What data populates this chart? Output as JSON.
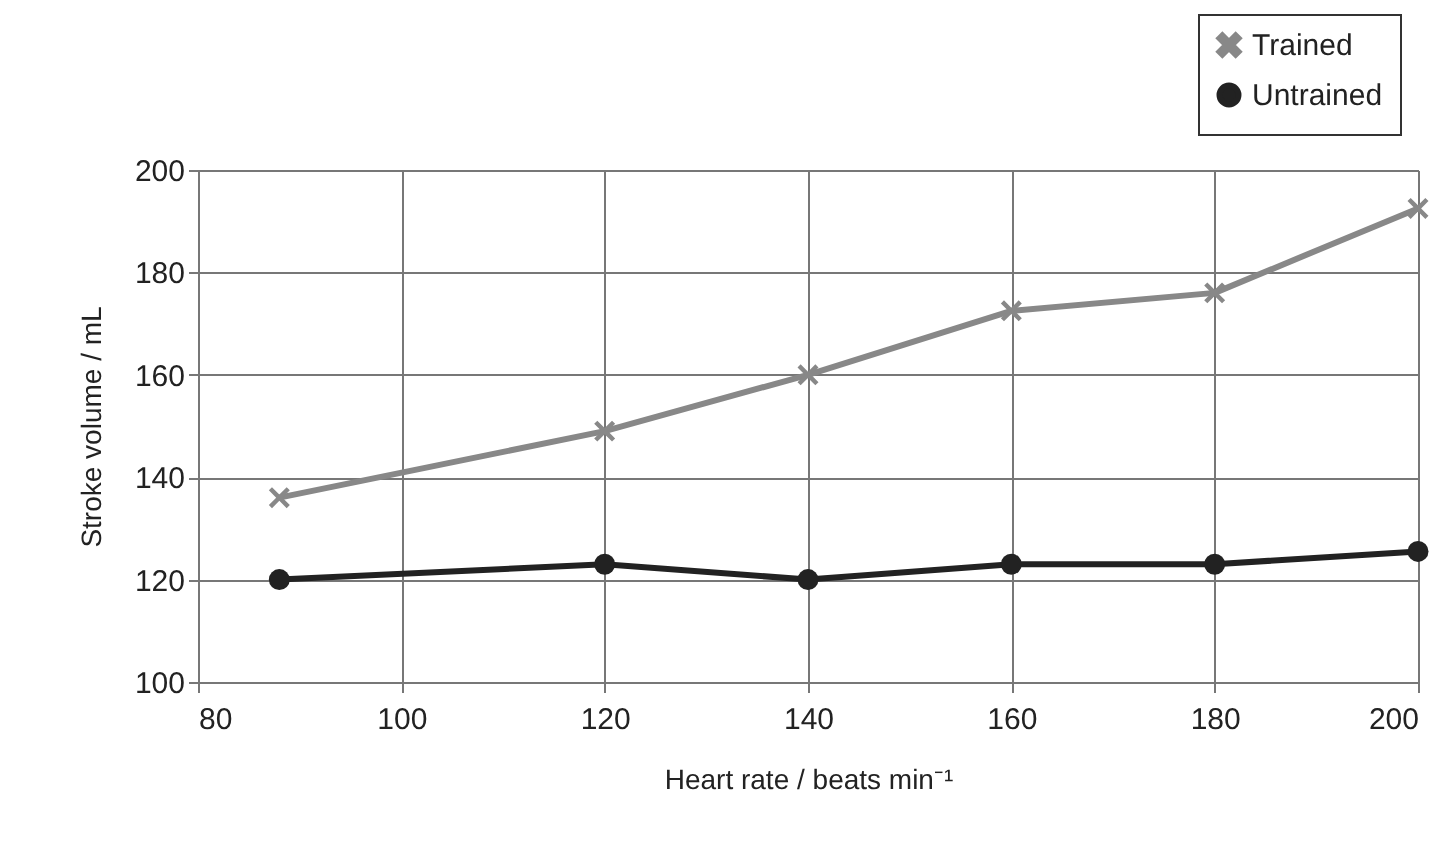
{
  "chart_data": {
    "type": "line",
    "xlabel": "Heart rate / beats min⁻¹",
    "ylabel": "Stroke volume / mL",
    "x": [
      88,
      120,
      140,
      160,
      180,
      200
    ],
    "series": [
      {
        "name": "Trained",
        "color": "#888888",
        "marker": "cross",
        "values": [
          136,
          149,
          160,
          172.5,
          176,
          192.5
        ]
      },
      {
        "name": "Untrained",
        "color": "#222222",
        "marker": "circle",
        "values": [
          120,
          123,
          120,
          123,
          123,
          125.5
        ]
      }
    ],
    "xlim": [
      80,
      200
    ],
    "xticks": [
      80,
      100,
      120,
      140,
      160,
      180,
      200
    ],
    "ylim": [
      100,
      200
    ],
    "yticks": [
      100,
      120,
      140,
      160,
      180,
      200
    ],
    "grid": true,
    "legend": "top right",
    "line_style": "solid"
  }
}
